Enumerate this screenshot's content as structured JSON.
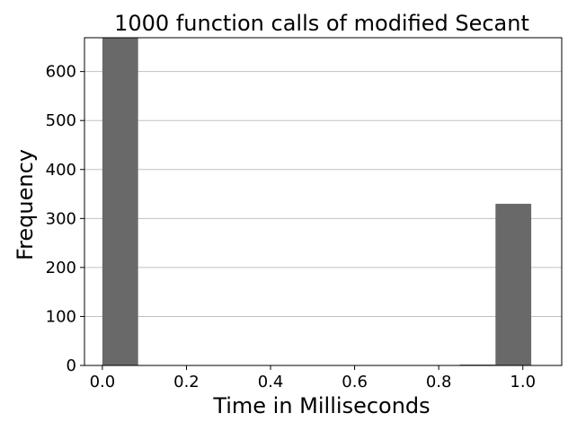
{
  "chart_data": {
    "type": "bar",
    "title": "1000 function calls of modified Secant",
    "xlabel": "Time in Milliseconds",
    "ylabel": "Frequency",
    "xlim": [
      -0.0425,
      1.0925
    ],
    "ylim": [
      0,
      669
    ],
    "xticks": [
      0.0,
      0.2,
      0.4,
      0.6,
      0.8,
      1.0
    ],
    "xtick_labels": [
      "0.0",
      "0.2",
      "0.4",
      "0.6",
      "0.8",
      "1.0"
    ],
    "yticks": [
      0,
      100,
      200,
      300,
      400,
      500,
      600
    ],
    "ytick_labels": [
      "0",
      "100",
      "200",
      "300",
      "400",
      "500",
      "600"
    ],
    "grid": "y",
    "bar_color": "#696969",
    "bins": [
      {
        "x0": 0.0,
        "x1": 0.085,
        "value": 669
      },
      {
        "x0": 0.085,
        "x1": 0.17,
        "value": 0
      },
      {
        "x0": 0.17,
        "x1": 0.255,
        "value": 0
      },
      {
        "x0": 0.255,
        "x1": 0.34,
        "value": 0
      },
      {
        "x0": 0.34,
        "x1": 0.425,
        "value": 0
      },
      {
        "x0": 0.425,
        "x1": 0.51,
        "value": 0
      },
      {
        "x0": 0.51,
        "x1": 0.595,
        "value": 0
      },
      {
        "x0": 0.595,
        "x1": 0.68,
        "value": 0
      },
      {
        "x0": 0.68,
        "x1": 0.765,
        "value": 0
      },
      {
        "x0": 0.765,
        "x1": 0.85,
        "value": 0
      },
      {
        "x0": 0.85,
        "x1": 0.935,
        "value": 1
      },
      {
        "x0": 0.935,
        "x1": 1.02,
        "value": 330
      }
    ]
  }
}
